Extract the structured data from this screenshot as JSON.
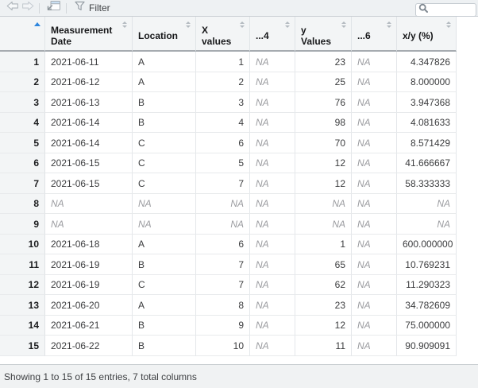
{
  "toolbar": {
    "back_icon": "back-arrow",
    "forward_icon": "forward-arrow",
    "popout_icon": "show-in-new-window",
    "filter_icon": "funnel",
    "filter_label": "Filter",
    "search": {
      "icon": "magnifier",
      "value": "",
      "placeholder": ""
    }
  },
  "table": {
    "na_text": "NA",
    "sorted_column": {
      "id": "rownames",
      "direction": "ascending",
      "icon_color": "#2E86DE"
    },
    "columns": [
      {
        "id": "rownames",
        "label": "",
        "align": "right",
        "sorted": true
      },
      {
        "id": "measurement-date",
        "label": "Measurement Date",
        "align": "left",
        "sorted": false
      },
      {
        "id": "location",
        "label": "Location",
        "align": "left",
        "sorted": false
      },
      {
        "id": "x-values",
        "label": "X values",
        "align": "right",
        "sorted": false
      },
      {
        "id": "col-4",
        "label": "...4",
        "align": "left",
        "sorted": false
      },
      {
        "id": "y-values",
        "label": "y Values",
        "align": "right",
        "sorted": false
      },
      {
        "id": "col-6",
        "label": "...6",
        "align": "left",
        "sorted": false
      },
      {
        "id": "x-over-y-pct",
        "label": "x/y (%)",
        "align": "right",
        "sorted": false
      }
    ],
    "rows": [
      [
        "1",
        "2021-06-11",
        "A",
        "1",
        "NA",
        "23",
        "NA",
        "4.347826"
      ],
      [
        "2",
        "2021-06-12",
        "A",
        "2",
        "NA",
        "25",
        "NA",
        "8.000000"
      ],
      [
        "3",
        "2021-06-13",
        "B",
        "3",
        "NA",
        "76",
        "NA",
        "3.947368"
      ],
      [
        "4",
        "2021-06-14",
        "B",
        "4",
        "NA",
        "98",
        "NA",
        "4.081633"
      ],
      [
        "5",
        "2021-06-14",
        "C",
        "6",
        "NA",
        "70",
        "NA",
        "8.571429"
      ],
      [
        "6",
        "2021-06-15",
        "C",
        "5",
        "NA",
        "12",
        "NA",
        "41.666667"
      ],
      [
        "7",
        "2021-06-15",
        "C",
        "7",
        "NA",
        "12",
        "NA",
        "58.333333"
      ],
      [
        "8",
        "NA",
        "NA",
        "NA",
        "NA",
        "NA",
        "NA",
        "NA"
      ],
      [
        "9",
        "NA",
        "NA",
        "NA",
        "NA",
        "NA",
        "NA",
        "NA"
      ],
      [
        "10",
        "2021-06-18",
        "A",
        "6",
        "NA",
        "1",
        "NA",
        "600.000000"
      ],
      [
        "11",
        "2021-06-19",
        "B",
        "7",
        "NA",
        "65",
        "NA",
        "10.769231"
      ],
      [
        "12",
        "2021-06-19",
        "C",
        "7",
        "NA",
        "62",
        "NA",
        "11.290323"
      ],
      [
        "13",
        "2021-06-20",
        "A",
        "8",
        "NA",
        "23",
        "NA",
        "34.782609"
      ],
      [
        "14",
        "2021-06-21",
        "B",
        "9",
        "NA",
        "12",
        "NA",
        "75.000000"
      ],
      [
        "15",
        "2021-06-22",
        "B",
        "10",
        "NA",
        "11",
        "NA",
        "90.909091"
      ]
    ]
  },
  "statusbar": {
    "text": "Showing 1 to 15 of 15 entries, 7 total columns"
  }
}
